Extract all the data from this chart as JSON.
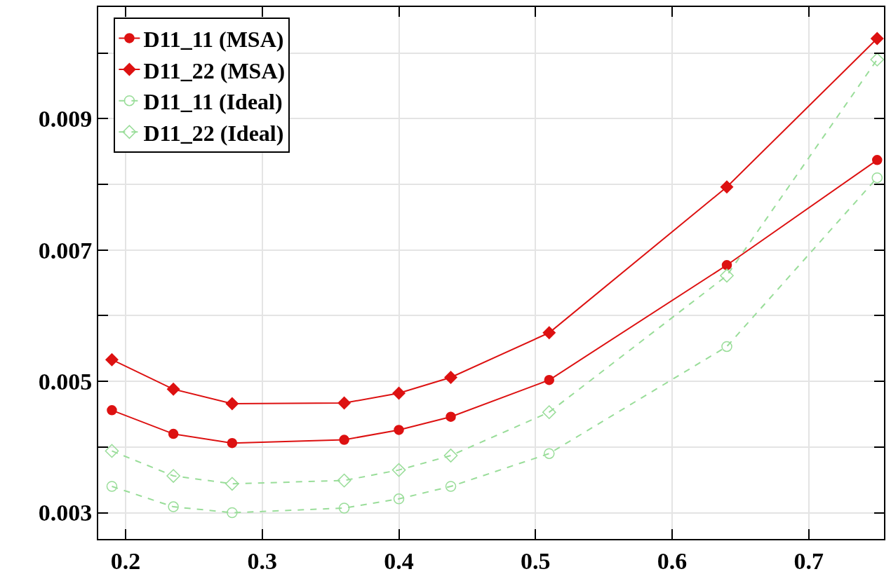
{
  "chart_data": {
    "type": "line",
    "x": [
      0.19,
      0.235,
      0.278,
      0.36,
      0.4,
      0.438,
      0.51,
      0.64,
      0.75
    ],
    "series": [
      {
        "name": "D11_11 (MSA)",
        "color": "#dd1111",
        "marker": "circle",
        "line_style": "solid",
        "values": [
          0.00456,
          0.0042,
          0.00406,
          0.00411,
          0.00426,
          0.00446,
          0.00502,
          0.00677,
          0.00837
        ]
      },
      {
        "name": "D11_22 (MSA)",
        "color": "#dd1111",
        "marker": "diamond",
        "line_style": "solid",
        "values": [
          0.00533,
          0.00488,
          0.00466,
          0.00467,
          0.00482,
          0.00506,
          0.00574,
          0.00796,
          0.01022
        ]
      },
      {
        "name": "D11_11 (Ideal)",
        "color": "#99dd99",
        "marker": "circle",
        "line_style": "dashed",
        "values": [
          0.0034,
          0.00309,
          0.003,
          0.00307,
          0.00321,
          0.0034,
          0.0039,
          0.00553,
          0.0081
        ]
      },
      {
        "name": "D11_22 (Ideal)",
        "color": "#99dd99",
        "marker": "diamond",
        "line_style": "dashed",
        "values": [
          0.00394,
          0.00356,
          0.00344,
          0.00349,
          0.00365,
          0.00387,
          0.00453,
          0.00661,
          0.0099
        ]
      }
    ],
    "xlim": [
      0.18,
      0.755
    ],
    "xticks": [
      0.2,
      0.3,
      0.4,
      0.5,
      0.6,
      0.7
    ],
    "ylim": [
      0.0026,
      0.0107
    ],
    "yticks": [
      0.003,
      {
        "value": 0.004,
        "label": null
      },
      0.005,
      {
        "value": 0.006,
        "label": null
      },
      0.007,
      {
        "value": 0.008,
        "label": null
      },
      0.009,
      {
        "value": 0.01,
        "label": null
      }
    ],
    "grid": true,
    "legend": "top left"
  }
}
